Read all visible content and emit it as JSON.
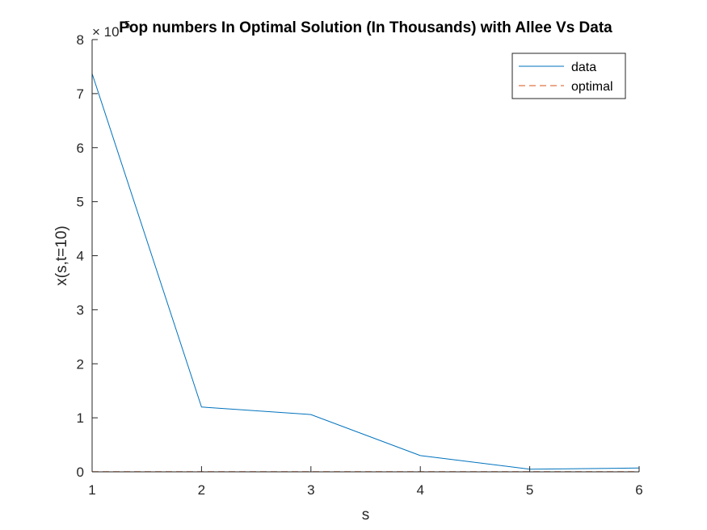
{
  "chart_data": {
    "type": "line",
    "title": "Pop numbers In Optimal Solution (In Thousands) with Allee Vs Data",
    "xlabel": "s",
    "ylabel": "x(s,t=10)",
    "exponent_label": "× 10",
    "exponent_power": "5",
    "x": [
      1,
      2,
      3,
      4,
      5,
      6
    ],
    "xlim": [
      1,
      6
    ],
    "ylim": [
      0,
      800000
    ],
    "xticks": [
      "1",
      "2",
      "3",
      "4",
      "5",
      "6"
    ],
    "yticks": [
      "0",
      "1",
      "2",
      "3",
      "4",
      "5",
      "6",
      "7",
      "8"
    ],
    "ytick_values": [
      0,
      100000,
      200000,
      300000,
      400000,
      500000,
      600000,
      700000,
      800000
    ],
    "grid": false,
    "legend_position": "top-right",
    "series": [
      {
        "name": "data",
        "values": [
          737000,
          120000,
          106000,
          30000,
          5000,
          7000
        ],
        "color": "#0072BD",
        "style": "solid"
      },
      {
        "name": "optimal",
        "values": [
          500,
          500,
          500,
          500,
          500,
          500
        ],
        "color": "#D95319",
        "style": "dashed"
      }
    ]
  }
}
